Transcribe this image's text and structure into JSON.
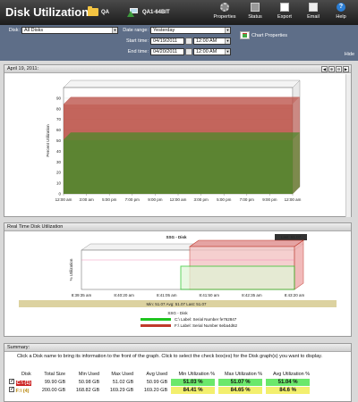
{
  "app": {
    "title": "Disk Utilization"
  },
  "breadcrumbs": [
    {
      "label": "QA",
      "icon": "folder-icon"
    },
    {
      "label": "QA1-64BIT",
      "icon": "server-icon"
    }
  ],
  "toolbar": [
    {
      "label": "Properties",
      "icon": "gear-icon"
    },
    {
      "label": "Status",
      "icon": "status-icon"
    },
    {
      "label": "Export",
      "icon": "export-icon"
    },
    {
      "label": "Email",
      "icon": "email-icon"
    },
    {
      "label": "Help",
      "icon": "help-icon"
    }
  ],
  "filter": {
    "disk_label": "Disk:",
    "disk_value": "All Disks",
    "date_range_label": "Date range:",
    "date_range_value": "Yesterday",
    "start_label": "Start time:",
    "start_date": "04/19/2011",
    "start_time": "12:00 AM",
    "end_label": "End time:",
    "end_date": "04/20/2011",
    "end_time": "12:00 AM",
    "chart_properties": "Chart Properties",
    "hide": "Hide"
  },
  "panel1": {
    "title": "April 19, 2011:",
    "nav": [
      "◀",
      "⊕",
      "⊖",
      "▶"
    ]
  },
  "chart1": {
    "type": "area",
    "ylabel": "Percent Utilization",
    "yticks": [
      "0",
      "10",
      "20",
      "30",
      "40",
      "50",
      "60",
      "70",
      "80",
      "90"
    ],
    "xticks": [
      "12:00 am",
      "3:00 am",
      "5:00 pm",
      "7:00 pm",
      "9:00 pm",
      "12:00 am",
      "3:00 pm",
      "5:00 pm",
      "7:00 pm",
      "9:00 pm",
      "12:00 am"
    ],
    "series": [
      {
        "name": "C:\\",
        "color": "#4a8a2a",
        "value": 51.03
      },
      {
        "name": "F:\\",
        "color": "#b84a40",
        "value": 84.41
      }
    ],
    "ylim": [
      0,
      100
    ]
  },
  "panel2": {
    "title": "Real Time Disk Utilization"
  },
  "chart2": {
    "type": "bar",
    "title": "SSG - Disk",
    "badge": "Last: 51.07",
    "ylabel": "% Utilization",
    "xticks": [
      "8:39:35 am",
      "8:40:20 am",
      "8:41:05 am",
      "8:41:50 am",
      "8:42:35 am",
      "8:43:20 am"
    ],
    "stats": "Min: 51.07   Avg: 51.07   Last: 51.07",
    "legend_title": "SSG - Disk",
    "legend": [
      {
        "name": "C:\\ Label: Serial Number fe762847",
        "color": "#1fc41f"
      },
      {
        "name": "F:\\ Label: Serial Number 6eba4d62",
        "color": "#c0392b"
      }
    ]
  },
  "summary": {
    "title": "Summary:",
    "instructions": "Click a Disk name to bring its information to the front of the graph. Click to select the check box(es) for the Disk graph(s) you want to display.",
    "columns": [
      "Disk",
      "Total Size",
      "Min Used",
      "Max Used",
      "Avg Used",
      "Min Utilization %",
      "Max Utilization %",
      "Avg Utilization %"
    ],
    "rows": [
      {
        "disk": "C:\\ (1)",
        "disk_color": "#cc2222",
        "total": "99.90 GB",
        "min_used": "50.98 GB",
        "max_used": "51.02 GB",
        "avg_used": "50.99 GB",
        "min_util": "51.03 %",
        "max_util": "51.07 %",
        "avg_util": "51.04 %",
        "bar_color": "#6be86b"
      },
      {
        "disk": "F:\\ (4)",
        "disk_color": "#cc9922",
        "total": "200.00 GB",
        "min_used": "168.82 GB",
        "max_used": "169.29 GB",
        "avg_used": "169.20 GB",
        "min_util": "84.41 %",
        "max_util": "84.65 %",
        "avg_util": "84.6 %",
        "bar_color": "#f3ef6e"
      }
    ]
  }
}
